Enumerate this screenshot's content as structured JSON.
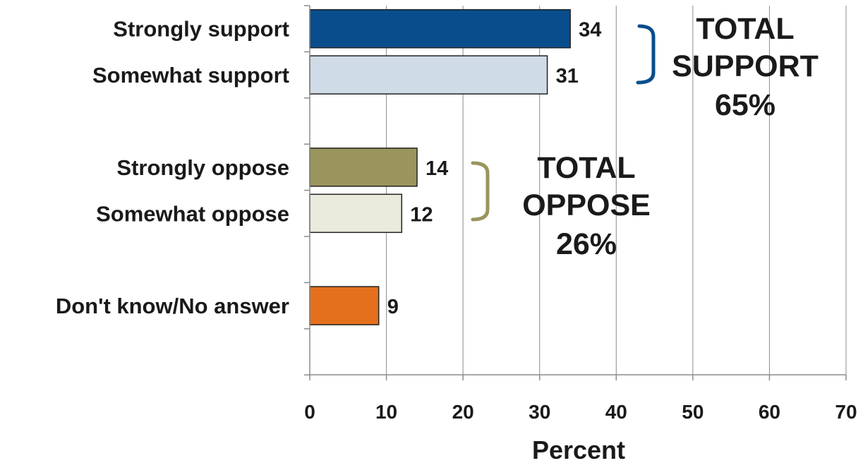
{
  "chart_data": {
    "type": "bar",
    "orientation": "horizontal",
    "categories": [
      "Strongly support",
      "Somewhat support",
      "Strongly oppose",
      "Somewhat oppose",
      "Don't know/No answer"
    ],
    "values": [
      34,
      31,
      14,
      12,
      9
    ],
    "value_labels": [
      "34",
      "31",
      "14",
      "12",
      "9"
    ],
    "bar_colors": [
      "#0a4d8c",
      "#cfdbe6",
      "#9a955c",
      "#eaeadd",
      "#e4701e"
    ],
    "xlabel": "Percent",
    "ylabel": "",
    "xlim": [
      0,
      70
    ],
    "x_ticks": [
      "0",
      "10",
      "20",
      "30",
      "40",
      "50",
      "60",
      "70"
    ],
    "grid": "vertical",
    "groups": [
      {
        "lines": [
          "TOTAL",
          "SUPPORT",
          "65%"
        ],
        "color": "#0a4d8c"
      },
      {
        "lines": [
          "TOTAL",
          "OPPOSE",
          "26%"
        ],
        "color": "#9a955c"
      }
    ]
  }
}
